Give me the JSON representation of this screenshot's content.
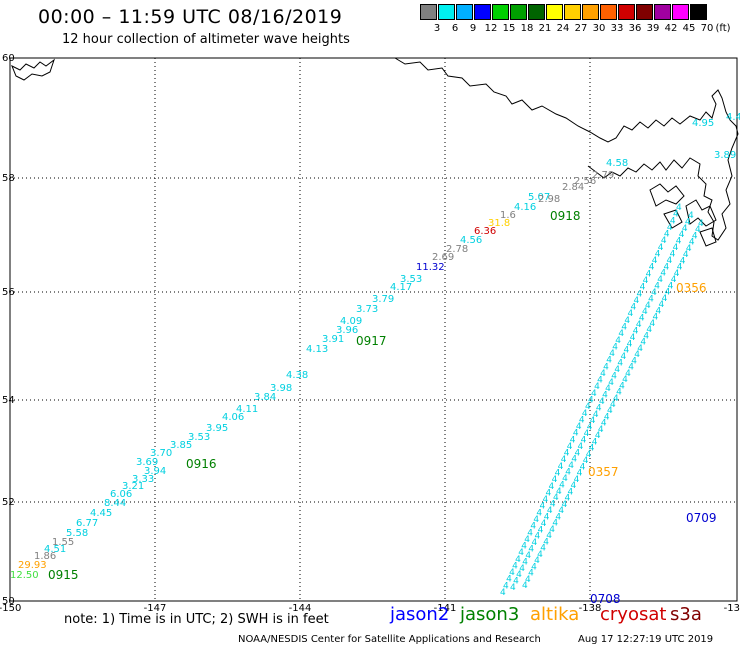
{
  "header": {
    "title": "00:00 – 11:59 UTC 08/16/2019",
    "subtitle": "12 hour collection of altimeter wave heights"
  },
  "legend": {
    "unit_label": "(ft)",
    "bins": [
      {
        "label": "3",
        "color": "#808080"
      },
      {
        "label": "6",
        "color": "#00f0f0"
      },
      {
        "label": "9",
        "color": "#00b0ff"
      },
      {
        "label": "12",
        "color": "#0000ff"
      },
      {
        "label": "15",
        "color": "#00d000"
      },
      {
        "label": "18",
        "color": "#00a000"
      },
      {
        "label": "21",
        "color": "#006400"
      },
      {
        "label": "24",
        "color": "#ffff00"
      },
      {
        "label": "27",
        "color": "#ffd000"
      },
      {
        "label": "30",
        "color": "#ffa000"
      },
      {
        "label": "33",
        "color": "#ff6000"
      },
      {
        "label": "36",
        "color": "#d00000"
      },
      {
        "label": "39",
        "color": "#800000"
      },
      {
        "label": "42",
        "color": "#a000a0"
      },
      {
        "label": "45",
        "color": "#ff00ff"
      },
      {
        "label": "70",
        "color": "#000000"
      }
    ]
  },
  "map": {
    "lon_range": [
      -150,
      -135
    ],
    "lat_range": [
      50,
      60
    ],
    "lon_ticks": [
      "-150",
      "-147",
      "-144",
      "-141",
      "-138",
      "-135"
    ],
    "lat_ticks": [
      "60",
      "58",
      "56",
      "54",
      "52",
      "50"
    ],
    "gridlines": true
  },
  "passes": [
    {
      "label": "0915",
      "color": "#008000"
    },
    {
      "label": "0916",
      "color": "#008000"
    },
    {
      "label": "0917",
      "color": "#008000"
    },
    {
      "label": "0918",
      "color": "#008000"
    },
    {
      "label": "0356",
      "color": "#ffa000"
    },
    {
      "label": "0357",
      "color": "#ffa000"
    },
    {
      "label": "0709",
      "color": "#0000d0"
    },
    {
      "label": "0708",
      "color": "#0000d0"
    }
  ],
  "wave_labels": [
    {
      "text": "12.50",
      "color": "#40e040"
    },
    {
      "text": "29.93",
      "color": "#ffa000"
    },
    {
      "text": "1.86",
      "color": "#808080"
    },
    {
      "text": "1.55",
      "color": "#808080"
    },
    {
      "text": "4.51",
      "color": "#00d0e0"
    },
    {
      "text": "5.58",
      "color": "#00d0e0"
    },
    {
      "text": "6.77",
      "color": "#00d0e0"
    },
    {
      "text": "4.45",
      "color": "#00d0e0"
    },
    {
      "text": "8.44",
      "color": "#00d0e0"
    },
    {
      "text": "6.06",
      "color": "#00d0e0"
    },
    {
      "text": "3.21",
      "color": "#00d0e0"
    },
    {
      "text": "3.33",
      "color": "#00d0e0"
    },
    {
      "text": "3.94",
      "color": "#00d0e0"
    },
    {
      "text": "3.69",
      "color": "#00d0e0"
    },
    {
      "text": "3.70",
      "color": "#00d0e0"
    },
    {
      "text": "3.85",
      "color": "#00d0e0"
    },
    {
      "text": "3.53",
      "color": "#00d0e0"
    },
    {
      "text": "3.95",
      "color": "#00d0e0"
    },
    {
      "text": "4.06",
      "color": "#00d0e0"
    },
    {
      "text": "4.11",
      "color": "#00d0e0"
    },
    {
      "text": "3.84",
      "color": "#00d0e0"
    },
    {
      "text": "3.98",
      "color": "#00d0e0"
    },
    {
      "text": "4.38",
      "color": "#00d0e0"
    },
    {
      "text": "4.13",
      "color": "#00d0e0"
    },
    {
      "text": "3.91",
      "color": "#00d0e0"
    },
    {
      "text": "3.96",
      "color": "#00d0e0"
    },
    {
      "text": "4.09",
      "color": "#00d0e0"
    },
    {
      "text": "3.73",
      "color": "#00d0e0"
    },
    {
      "text": "3.79",
      "color": "#00d0e0"
    },
    {
      "text": "4.17",
      "color": "#00d0e0"
    },
    {
      "text": "3.53",
      "color": "#00d0e0"
    },
    {
      "text": "11.32",
      "color": "#0000d0"
    },
    {
      "text": "2.69",
      "color": "#808080"
    },
    {
      "text": "2.78",
      "color": "#808080"
    },
    {
      "text": "4.56",
      "color": "#00d0e0"
    },
    {
      "text": "6.36",
      "color": "#d00000"
    },
    {
      "text": "31.8",
      "color": "#ffd000"
    },
    {
      "text": "1.6",
      "color": "#808080"
    },
    {
      "text": "4.16",
      "color": "#00d0e0"
    },
    {
      "text": "5.07",
      "color": "#00d0e0"
    },
    {
      "text": "2.98",
      "color": "#808080"
    },
    {
      "text": "2.84",
      "color": "#808080"
    },
    {
      "text": "2.56",
      "color": "#808080"
    },
    {
      "text": "2.79",
      "color": "#808080"
    },
    {
      "text": "4.58",
      "color": "#00d0e0"
    },
    {
      "text": "3.89",
      "color": "#00d0e0"
    },
    {
      "text": "4.95",
      "color": "#00d0e0"
    },
    {
      "text": "4.42",
      "color": "#00d0e0"
    }
  ],
  "footer": {
    "note": "note: 1) Time is in UTC; 2) SWH is in feet",
    "satellites": [
      {
        "name": "jason2",
        "color": "#0000ff"
      },
      {
        "name": "jason3",
        "color": "#008000"
      },
      {
        "name": "altika",
        "color": "#ffa000"
      },
      {
        "name": "cryosat",
        "color": "#d00000"
      },
      {
        "name": "s3a",
        "color": "#800000"
      }
    ],
    "credit": "NOAA/NESDIS Center for Satellite Applications and Research",
    "generated": "Aug 17 12:27:19 UTC 2019"
  }
}
